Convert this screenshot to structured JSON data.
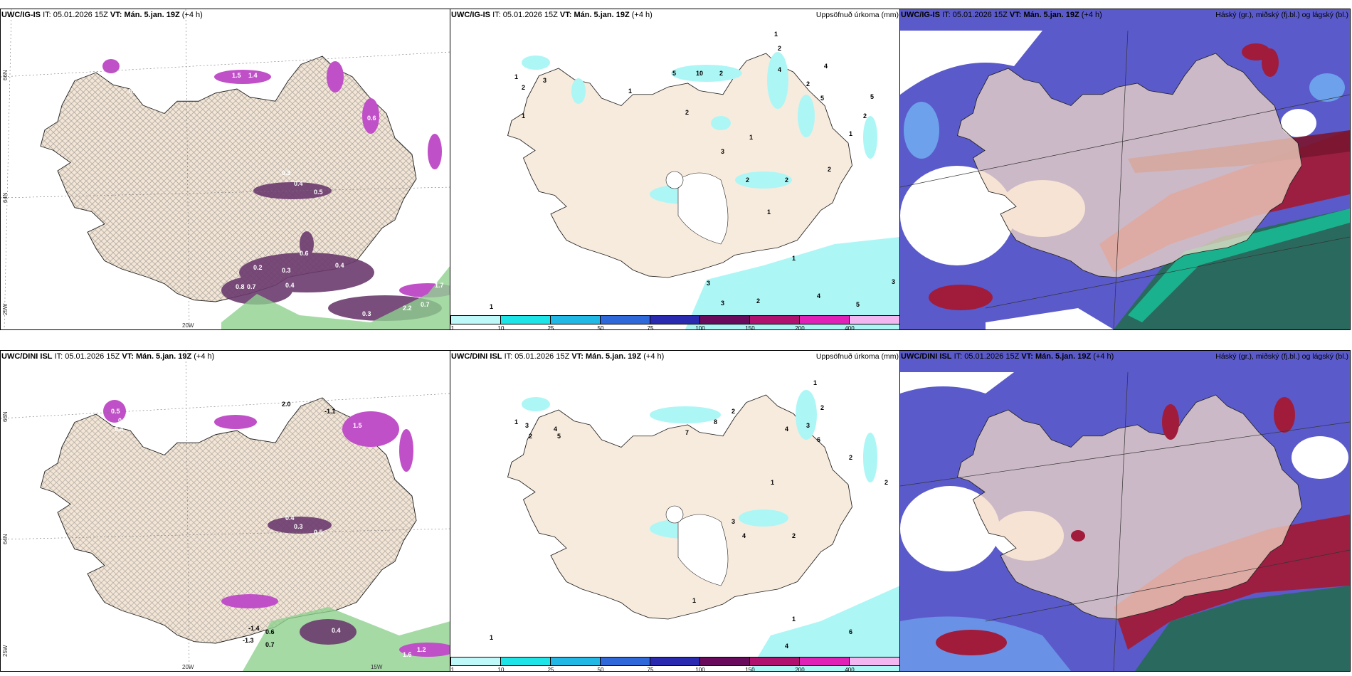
{
  "colors": {
    "land": "#f3e6d7",
    "wet_purple": "#6b3a6e",
    "wet_magenta": "#c050c8",
    "green": "#8ed18e",
    "cyan": "#adf6f6",
    "cloud_blue": "#5a5acb",
    "cloud_light": "#6fa8f0",
    "cloud_red": "#a01c3a",
    "cloud_teal": "#2a6a5e",
    "sea_teal": "#17c49a"
  },
  "colorbar": {
    "ticks": [
      "1",
      "10",
      "25",
      "50",
      "75",
      "100",
      "150",
      "200",
      "400"
    ],
    "colors": [
      "#bff8f8",
      "#1ee4e8",
      "#22b8e6",
      "#2f68d8",
      "#2a2ab0",
      "#6a0a5c",
      "#b0106e",
      "#e020b6",
      "#f4b6f0"
    ]
  },
  "panels": [
    {
      "model": "UWC/IG-IS",
      "it_label": "IT:",
      "it": "05.01.2026 15Z",
      "vt": "VT: Mán. 5.jan. 19Z",
      "lead": "(+4 h)",
      "title_right": ""
    },
    {
      "model": "UWC/IG-IS",
      "it_label": "IT:",
      "it": "05.01.2026 15Z",
      "vt": "VT: Mán. 5.jan. 19Z",
      "lead": "(+4 h)",
      "title_right": "Uppsöfnuð úrkoma (mm)"
    },
    {
      "model": "UWC/IG-IS",
      "it_label": "IT:",
      "it": "05.01.2026 15Z",
      "vt": "VT: Mán. 5.jan. 19Z",
      "lead": "(+4 h)",
      "title_right": "Háský (gr.), miðský (fj.bl.) og lágský (bl.)"
    },
    {
      "model": "UWC/DINI ISL",
      "it_label": "IT:",
      "it": "05.01.2026 15Z",
      "vt": "VT: Mán. 5.jan. 19Z",
      "lead": "(+4 h)",
      "title_right": ""
    },
    {
      "model": "UWC/DINI ISL",
      "it_label": "IT:",
      "it": "05.01.2026 15Z",
      "vt": "VT: Mán. 5.jan. 19Z",
      "lead": "(+4 h)",
      "title_right": "Uppsöfnuð úrkoma (mm)"
    },
    {
      "model": "UWC/DINI ISL",
      "it_label": "IT:",
      "it": "05.01.2026 15Z",
      "vt": "VT: Mán. 5.jan. 19Z",
      "lead": "(+4 h)",
      "title_right": "Háský (gr.), miðský (fj.bl.) og lágský (bl.)"
    }
  ],
  "axis_labels": {
    "lat66": "66N",
    "lat64": "64N",
    "lon25": "25W",
    "lon20": "20W",
    "lon15": "15W"
  },
  "top_left_values": [
    "0.4",
    "1.5",
    "1.4",
    "0.6",
    "0.3",
    "0.4",
    "0.5",
    "0.4",
    "0.8",
    "0.7",
    "0.3",
    "0.2",
    "0.4",
    "0.6",
    "0.3",
    "2.2",
    "0.7",
    "0.4",
    "1.7"
  ],
  "bottom_left_values": [
    "0.5",
    "0.6",
    "0.4",
    "2.0",
    "-1.1",
    "1.5",
    "0.4",
    "0.3",
    "0.5",
    "-1.3",
    "0.6",
    "0.7",
    "-1.4",
    "0.4",
    "1.6",
    "1.2"
  ],
  "top_mid_values": [
    "1",
    "2",
    "3",
    "5",
    "10",
    "2",
    "4",
    "2",
    "5",
    "1",
    "2",
    "1",
    "2",
    "3",
    "1",
    "2",
    "2",
    "1",
    "1",
    "2",
    "5",
    "1",
    "2",
    "4",
    "1",
    "3",
    "3",
    "2",
    "4",
    "5",
    "3",
    "1"
  ],
  "bottom_mid_values": [
    "1",
    "3",
    "2",
    "4",
    "5",
    "7",
    "8",
    "2",
    "4",
    "3",
    "6",
    "2",
    "1",
    "2",
    "3",
    "4",
    "2",
    "1",
    "2",
    "1",
    "4",
    "6",
    "1",
    "1"
  ]
}
